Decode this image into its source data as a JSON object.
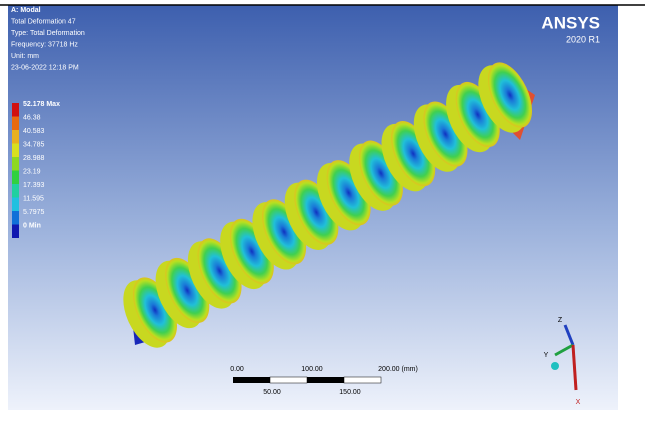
{
  "header": {
    "lines": [
      "A: Modal",
      "Total Deformation 47",
      "Type: Total Deformation",
      "Frequency: 37718 Hz",
      "Unit: mm",
      "23-06-2022 12:18 PM"
    ]
  },
  "legend": {
    "labels": [
      "52.178 Max",
      "46.38",
      "40.583",
      "34.785",
      "28.988",
      "23.19",
      "17.393",
      "11.595",
      "5.7975",
      "0 Min"
    ],
    "colors": [
      "#d01010",
      "#e86a10",
      "#e8b020",
      "#d8e020",
      "#8ed820",
      "#30d040",
      "#20d0a0",
      "#20c0e0",
      "#1070d8",
      "#1018b0"
    ]
  },
  "logo": {
    "name": "ANSYS",
    "version": "2020 R1"
  },
  "scale_bar": {
    "top_labels": [
      "0.00",
      "100.00",
      "200.00 (mm)"
    ],
    "bottom_labels": [
      "50.00",
      "150.00"
    ]
  },
  "triad": {
    "z": "Z",
    "y": "Y",
    "x": "X"
  }
}
